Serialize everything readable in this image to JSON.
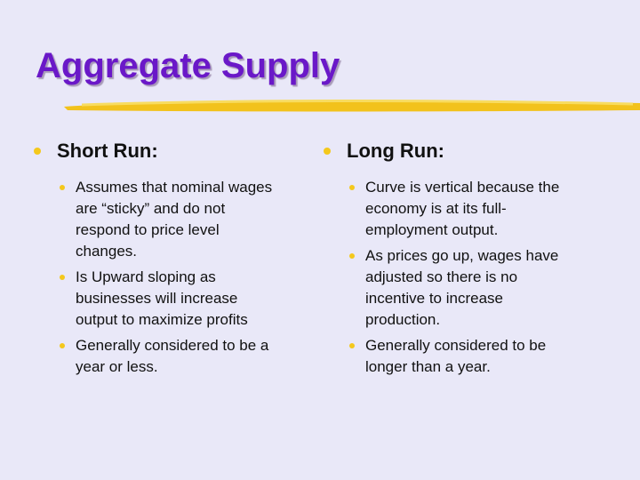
{
  "title": "Aggregate Supply",
  "colors": {
    "title": "#6a18c8",
    "bullet": "#f4c81c",
    "background": "#e9e8f8",
    "underline": "#f2c21c"
  },
  "short_run": {
    "heading": "Short Run:",
    "items": [
      "Assumes that nominal wages\nare “sticky” and do not\nrespond  to price level\nchanges.",
      "Is Upward sloping as\nbusinesses will increase\noutput to maximize profits",
      "Generally considered to be a\nyear or less."
    ]
  },
  "long_run": {
    "heading": "Long Run:",
    "items": [
      "Curve is vertical because the\neconomy is at its full-\nemployment output.",
      "As prices go up, wages have\nadjusted so there is no\nincentive to increase\nproduction.",
      "Generally considered to be\nlonger than a year."
    ]
  }
}
